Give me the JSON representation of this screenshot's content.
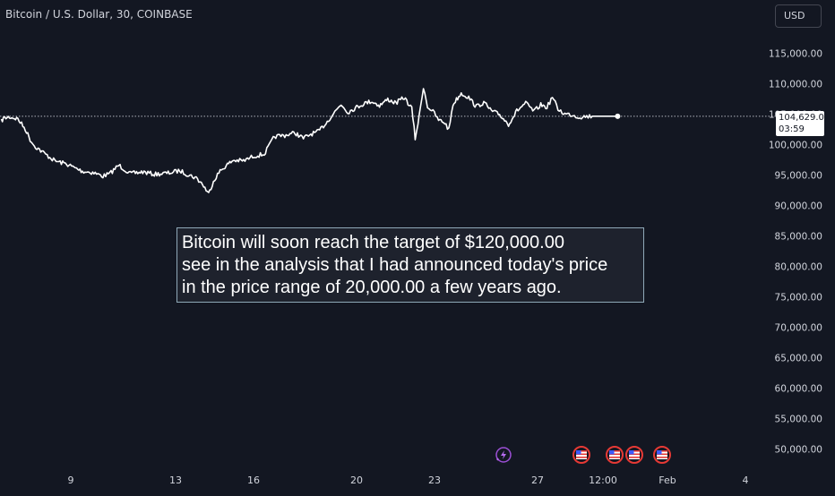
{
  "header": {
    "symbol_title": "Bitcoin / U.S. Dollar, 30, COINBASE",
    "currency": "USD"
  },
  "last_price": {
    "value": "104,629.01",
    "countdown": "03:59"
  },
  "annotation": {
    "text": "Bitcoin will soon reach the target of $120,000.00\nsee in the analysis that I had announced today's price\nin the price range of 20,000.00 a few years ago."
  },
  "colors": {
    "background": "#131722",
    "line": "#ffffff",
    "axis_text": "#d1d4dc"
  },
  "events": {
    "icons": [
      "lightning-icon",
      "us-flag-icon",
      "us-flag-icon",
      "us-flag-icon",
      "us-flag-icon"
    ]
  },
  "chart_data": {
    "type": "line",
    "title": "Bitcoin / U.S. Dollar, 30, COINBASE",
    "xlabel": "",
    "ylabel": "",
    "x_ticks": [
      "9",
      "13",
      "16",
      "20",
      "23",
      "27",
      "12:00",
      "Feb",
      "4"
    ],
    "y_ticks": [
      "115,000.00",
      "110,000.00",
      "105,000.00",
      "100,000.00",
      "95,000.00",
      "90,000.00",
      "85,000.00",
      "80,000.00",
      "75,000.00",
      "70,000.00",
      "65,000.00",
      "60,000.00",
      "55,000.00",
      "50,000.00"
    ],
    "ylim": [
      47300,
      119300
    ],
    "grid": false,
    "x_axis": "Jan 2025 day (30-minute bars)",
    "series": [
      {
        "x": [
          7.04,
          7.1,
          7.28,
          7.52,
          7.74,
          7.88,
          8.0,
          8.3,
          8.6,
          8.94,
          9.16,
          9.4,
          9.7,
          10.0,
          10.2,
          10.46,
          10.8,
          11.16,
          11.5,
          11.9,
          12.24,
          12.5,
          12.72,
          12.9,
          13.08,
          13.22,
          13.38,
          13.56,
          13.8,
          14.1,
          14.4,
          14.7,
          15.0,
          15.3,
          15.6,
          15.84,
          16.06,
          16.28,
          16.5,
          16.72,
          16.94,
          17.14,
          17.36,
          17.6,
          17.82,
          18.06,
          18.3,
          18.54,
          18.78,
          19.0,
          19.1,
          19.22,
          19.34,
          19.46,
          19.62,
          19.78,
          19.96,
          20.08,
          20.2,
          20.44,
          20.66,
          20.88,
          21.1,
          21.32,
          21.56,
          21.82,
          22.06,
          22.32,
          22.56,
          22.76,
          22.94,
          23.1,
          23.26,
          23.46,
          23.66,
          23.86,
          24.06,
          24.26,
          24.5,
          24.72,
          24.86,
          25.0
        ],
        "y": [
          103800,
          104300,
          104500,
          104200,
          102500,
          100800,
          99800,
          98500,
          97300,
          96800,
          96200,
          95600,
          95400,
          94800,
          95200,
          96600,
          95200,
          95500,
          95100,
          95300,
          95700,
          95000,
          94500,
          93500,
          91900,
          94000,
          95400,
          96400,
          97400,
          97300,
          98100,
          98400,
          101300,
          101500,
          101900,
          101000,
          101700,
          102100,
          103500,
          105100,
          106600,
          105300,
          106000,
          106700,
          107100,
          106400,
          107400,
          106800,
          107700,
          105900,
          101000,
          104700,
          109500,
          106200,
          105400,
          104000,
          103600,
          102400,
          106600,
          108400,
          107700,
          106200,
          106900,
          105500,
          104900,
          103300,
          105500,
          106800,
          105400,
          106500,
          106100,
          107800,
          105800,
          105000,
          104900,
          104500,
          104600,
          104629,
          104629,
          104629,
          104629,
          104629
        ]
      }
    ]
  }
}
